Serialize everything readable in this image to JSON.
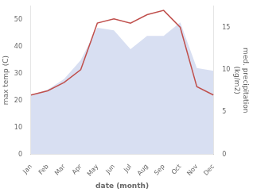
{
  "chart_data": {
    "type": "line",
    "xlabel": "date (month)",
    "ylabel": "max temp (C)",
    "y2label": "med. precipitation\n(kg/m2)",
    "categories": [
      "Jan",
      "Feb",
      "Mar",
      "Apr",
      "May",
      "Jun",
      "Jul",
      "Aug",
      "Sep",
      "Oct",
      "Nov",
      "Dec"
    ],
    "series": [
      {
        "type": "area",
        "color": "#b8c4e8",
        "values": [
          22,
          24,
          28,
          35,
          47,
          46,
          39,
          44,
          44,
          49,
          32,
          31
        ]
      },
      {
        "type": "line",
        "axis": "y2",
        "color": "#c0504d",
        "values": [
          7.0,
          7.5,
          8.5,
          10.0,
          15.5,
          16.0,
          15.5,
          16.5,
          17.0,
          15.0,
          8.0,
          7.0
        ]
      }
    ],
    "ylim": [
      0,
      55
    ],
    "yticks": [
      0,
      10,
      20,
      30,
      40,
      50
    ],
    "y2lim": [
      0,
      17.5
    ],
    "y2ticks": [
      0,
      5,
      10,
      15
    ],
    "grid": false
  }
}
